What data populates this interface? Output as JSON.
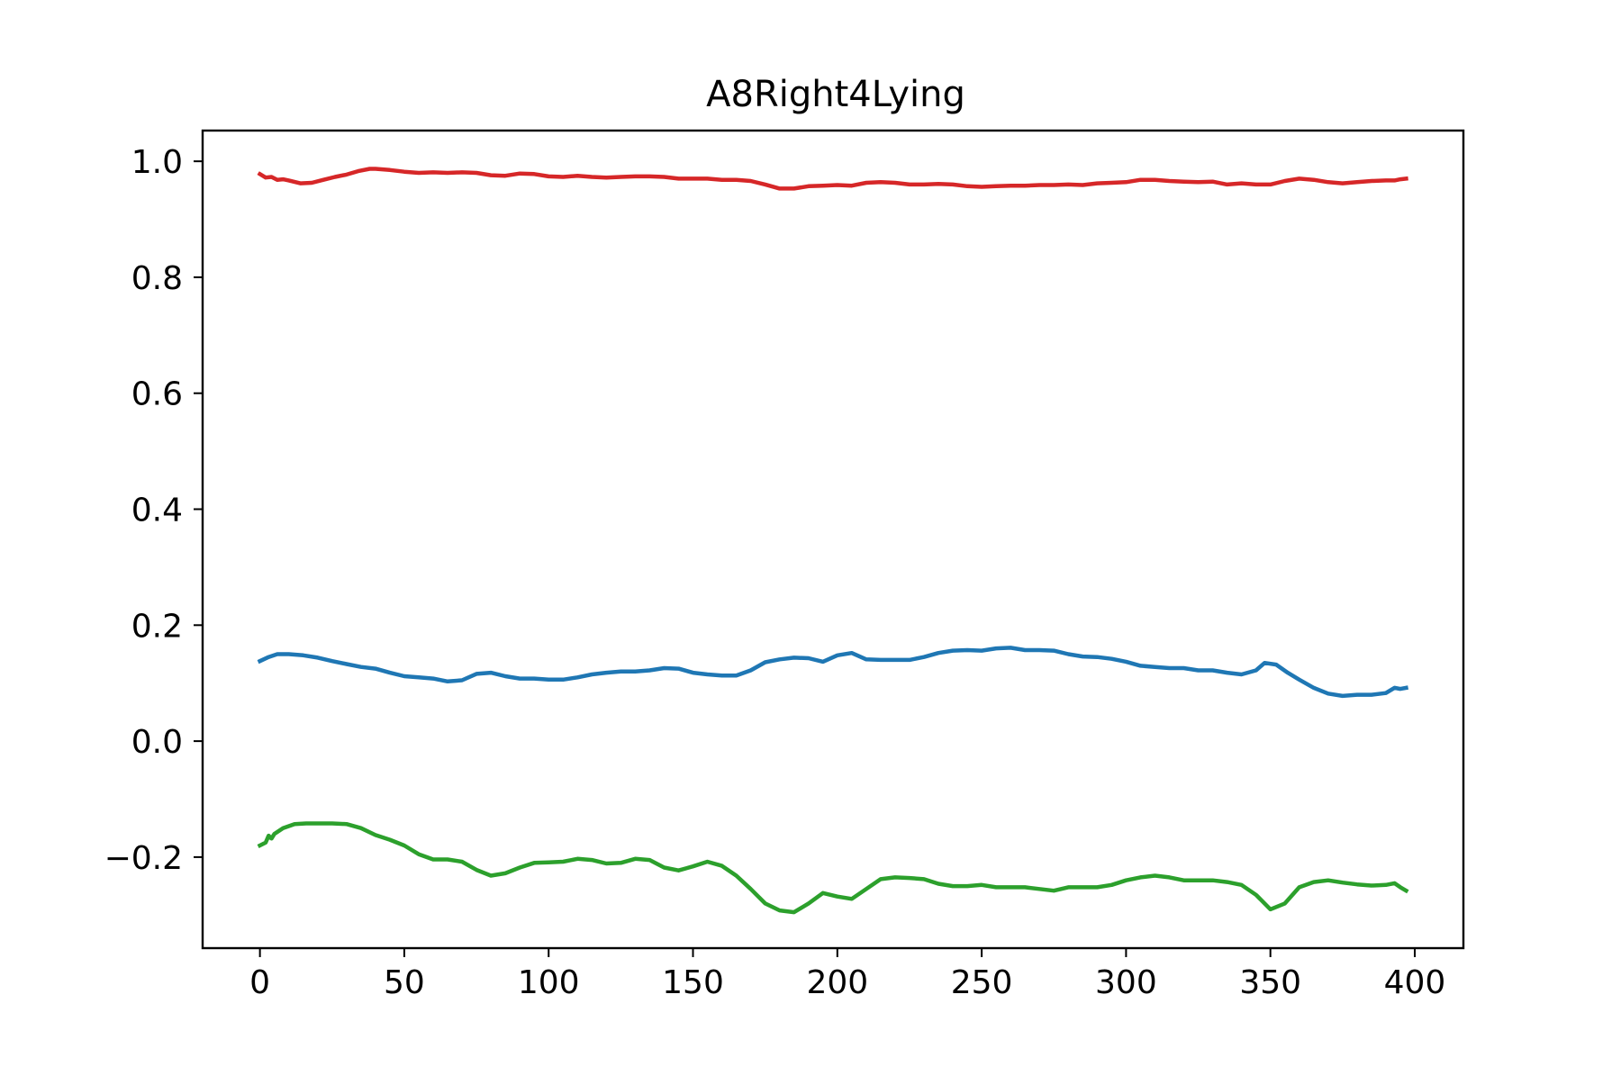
{
  "chart_data": {
    "type": "line",
    "title": "A8Right4Lying",
    "xlabel": "",
    "ylabel": "",
    "xlim": [
      -19.85,
      416.85
    ],
    "ylim": [
      -0.357,
      1.053
    ],
    "grid": false,
    "legend": "none",
    "x_ticks": [
      0,
      50,
      100,
      150,
      200,
      250,
      300,
      350,
      400
    ],
    "x_tick_labels": [
      "0",
      "50",
      "100",
      "150",
      "200",
      "250",
      "300",
      "350",
      "400"
    ],
    "y_ticks": [
      1.0,
      0.8,
      0.6,
      0.4,
      0.2,
      0.0,
      -0.2
    ],
    "y_tick_labels": [
      "1.0",
      "0.8",
      "0.6",
      "0.4",
      "0.2",
      "0.0",
      "−0.2"
    ],
    "series": [
      {
        "color": "#d62728",
        "points": [
          [
            0,
            0.978
          ],
          [
            2,
            0.972
          ],
          [
            4,
            0.973
          ],
          [
            6,
            0.968
          ],
          [
            8,
            0.969
          ],
          [
            10,
            0.967
          ],
          [
            14,
            0.962
          ],
          [
            18,
            0.963
          ],
          [
            22,
            0.968
          ],
          [
            26,
            0.973
          ],
          [
            30,
            0.977
          ],
          [
            34,
            0.983
          ],
          [
            38,
            0.987
          ],
          [
            40,
            0.987
          ],
          [
            45,
            0.985
          ],
          [
            50,
            0.982
          ],
          [
            55,
            0.98
          ],
          [
            60,
            0.981
          ],
          [
            65,
            0.98
          ],
          [
            70,
            0.981
          ],
          [
            75,
            0.98
          ],
          [
            80,
            0.976
          ],
          [
            85,
            0.975
          ],
          [
            90,
            0.979
          ],
          [
            95,
            0.978
          ],
          [
            100,
            0.974
          ],
          [
            105,
            0.973
          ],
          [
            110,
            0.975
          ],
          [
            115,
            0.973
          ],
          [
            120,
            0.972
          ],
          [
            125,
            0.973
          ],
          [
            130,
            0.974
          ],
          [
            135,
            0.974
          ],
          [
            140,
            0.973
          ],
          [
            145,
            0.97
          ],
          [
            150,
            0.97
          ],
          [
            155,
            0.97
          ],
          [
            160,
            0.968
          ],
          [
            165,
            0.968
          ],
          [
            170,
            0.966
          ],
          [
            175,
            0.96
          ],
          [
            180,
            0.953
          ],
          [
            185,
            0.953
          ],
          [
            190,
            0.957
          ],
          [
            195,
            0.958
          ],
          [
            200,
            0.959
          ],
          [
            205,
            0.958
          ],
          [
            210,
            0.963
          ],
          [
            215,
            0.964
          ],
          [
            220,
            0.963
          ],
          [
            225,
            0.96
          ],
          [
            230,
            0.96
          ],
          [
            235,
            0.961
          ],
          [
            240,
            0.96
          ],
          [
            245,
            0.957
          ],
          [
            250,
            0.956
          ],
          [
            255,
            0.957
          ],
          [
            260,
            0.958
          ],
          [
            265,
            0.958
          ],
          [
            270,
            0.959
          ],
          [
            275,
            0.959
          ],
          [
            280,
            0.96
          ],
          [
            285,
            0.959
          ],
          [
            290,
            0.962
          ],
          [
            295,
            0.963
          ],
          [
            300,
            0.964
          ],
          [
            305,
            0.968
          ],
          [
            310,
            0.968
          ],
          [
            315,
            0.966
          ],
          [
            320,
            0.965
          ],
          [
            325,
            0.964
          ],
          [
            330,
            0.965
          ],
          [
            335,
            0.96
          ],
          [
            340,
            0.962
          ],
          [
            345,
            0.96
          ],
          [
            350,
            0.96
          ],
          [
            355,
            0.966
          ],
          [
            360,
            0.97
          ],
          [
            365,
            0.968
          ],
          [
            370,
            0.964
          ],
          [
            375,
            0.962
          ],
          [
            380,
            0.964
          ],
          [
            385,
            0.966
          ],
          [
            390,
            0.967
          ],
          [
            393,
            0.967
          ],
          [
            395,
            0.969
          ],
          [
            397,
            0.97
          ]
        ]
      },
      {
        "color": "#1f77b4",
        "points": [
          [
            0,
            0.138
          ],
          [
            3,
            0.145
          ],
          [
            6,
            0.15
          ],
          [
            10,
            0.15
          ],
          [
            15,
            0.148
          ],
          [
            20,
            0.144
          ],
          [
            25,
            0.138
          ],
          [
            30,
            0.133
          ],
          [
            35,
            0.128
          ],
          [
            40,
            0.125
          ],
          [
            45,
            0.118
          ],
          [
            50,
            0.112
          ],
          [
            55,
            0.11
          ],
          [
            60,
            0.108
          ],
          [
            65,
            0.103
          ],
          [
            70,
            0.105
          ],
          [
            75,
            0.116
          ],
          [
            80,
            0.118
          ],
          [
            85,
            0.112
          ],
          [
            90,
            0.108
          ],
          [
            95,
            0.108
          ],
          [
            100,
            0.106
          ],
          [
            105,
            0.106
          ],
          [
            110,
            0.11
          ],
          [
            115,
            0.115
          ],
          [
            120,
            0.118
          ],
          [
            125,
            0.12
          ],
          [
            130,
            0.12
          ],
          [
            135,
            0.122
          ],
          [
            140,
            0.126
          ],
          [
            145,
            0.125
          ],
          [
            150,
            0.118
          ],
          [
            155,
            0.115
          ],
          [
            160,
            0.113
          ],
          [
            165,
            0.113
          ],
          [
            170,
            0.122
          ],
          [
            175,
            0.136
          ],
          [
            180,
            0.141
          ],
          [
            185,
            0.144
          ],
          [
            190,
            0.143
          ],
          [
            195,
            0.137
          ],
          [
            200,
            0.148
          ],
          [
            205,
            0.152
          ],
          [
            210,
            0.141
          ],
          [
            215,
            0.14
          ],
          [
            220,
            0.14
          ],
          [
            225,
            0.14
          ],
          [
            230,
            0.145
          ],
          [
            235,
            0.152
          ],
          [
            240,
            0.156
          ],
          [
            245,
            0.157
          ],
          [
            250,
            0.156
          ],
          [
            255,
            0.16
          ],
          [
            260,
            0.161
          ],
          [
            265,
            0.157
          ],
          [
            270,
            0.157
          ],
          [
            275,
            0.156
          ],
          [
            280,
            0.15
          ],
          [
            285,
            0.146
          ],
          [
            290,
            0.145
          ],
          [
            295,
            0.142
          ],
          [
            300,
            0.137
          ],
          [
            305,
            0.13
          ],
          [
            310,
            0.128
          ],
          [
            315,
            0.126
          ],
          [
            320,
            0.126
          ],
          [
            325,
            0.122
          ],
          [
            330,
            0.122
          ],
          [
            335,
            0.118
          ],
          [
            340,
            0.115
          ],
          [
            345,
            0.122
          ],
          [
            348,
            0.135
          ],
          [
            352,
            0.132
          ],
          [
            356,
            0.118
          ],
          [
            360,
            0.106
          ],
          [
            365,
            0.092
          ],
          [
            370,
            0.082
          ],
          [
            375,
            0.078
          ],
          [
            380,
            0.08
          ],
          [
            385,
            0.08
          ],
          [
            390,
            0.083
          ],
          [
            393,
            0.092
          ],
          [
            395,
            0.09
          ],
          [
            397,
            0.092
          ]
        ]
      },
      {
        "color": "#2ca02c",
        "points": [
          [
            0,
            -0.18
          ],
          [
            2,
            -0.175
          ],
          [
            3,
            -0.163
          ],
          [
            4,
            -0.168
          ],
          [
            5,
            -0.16
          ],
          [
            8,
            -0.15
          ],
          [
            12,
            -0.143
          ],
          [
            16,
            -0.142
          ],
          [
            20,
            -0.142
          ],
          [
            25,
            -0.142
          ],
          [
            30,
            -0.143
          ],
          [
            35,
            -0.15
          ],
          [
            40,
            -0.162
          ],
          [
            45,
            -0.17
          ],
          [
            50,
            -0.18
          ],
          [
            55,
            -0.195
          ],
          [
            60,
            -0.204
          ],
          [
            65,
            -0.204
          ],
          [
            70,
            -0.208
          ],
          [
            75,
            -0.222
          ],
          [
            80,
            -0.232
          ],
          [
            85,
            -0.228
          ],
          [
            90,
            -0.218
          ],
          [
            95,
            -0.21
          ],
          [
            100,
            -0.209
          ],
          [
            105,
            -0.208
          ],
          [
            110,
            -0.203
          ],
          [
            115,
            -0.205
          ],
          [
            120,
            -0.211
          ],
          [
            125,
            -0.21
          ],
          [
            130,
            -0.203
          ],
          [
            135,
            -0.205
          ],
          [
            140,
            -0.218
          ],
          [
            145,
            -0.223
          ],
          [
            150,
            -0.216
          ],
          [
            155,
            -0.208
          ],
          [
            160,
            -0.215
          ],
          [
            165,
            -0.232
          ],
          [
            170,
            -0.255
          ],
          [
            175,
            -0.28
          ],
          [
            180,
            -0.292
          ],
          [
            185,
            -0.295
          ],
          [
            190,
            -0.28
          ],
          [
            195,
            -0.262
          ],
          [
            200,
            -0.268
          ],
          [
            205,
            -0.272
          ],
          [
            210,
            -0.255
          ],
          [
            215,
            -0.238
          ],
          [
            220,
            -0.235
          ],
          [
            225,
            -0.236
          ],
          [
            230,
            -0.238
          ],
          [
            235,
            -0.246
          ],
          [
            240,
            -0.25
          ],
          [
            245,
            -0.25
          ],
          [
            250,
            -0.248
          ],
          [
            255,
            -0.252
          ],
          [
            260,
            -0.252
          ],
          [
            265,
            -0.252
          ],
          [
            270,
            -0.255
          ],
          [
            275,
            -0.258
          ],
          [
            280,
            -0.252
          ],
          [
            285,
            -0.252
          ],
          [
            290,
            -0.252
          ],
          [
            295,
            -0.248
          ],
          [
            300,
            -0.24
          ],
          [
            305,
            -0.235
          ],
          [
            310,
            -0.232
          ],
          [
            315,
            -0.235
          ],
          [
            320,
            -0.24
          ],
          [
            325,
            -0.24
          ],
          [
            330,
            -0.24
          ],
          [
            335,
            -0.243
          ],
          [
            340,
            -0.248
          ],
          [
            345,
            -0.265
          ],
          [
            350,
            -0.29
          ],
          [
            355,
            -0.28
          ],
          [
            360,
            -0.252
          ],
          [
            365,
            -0.243
          ],
          [
            370,
            -0.24
          ],
          [
            375,
            -0.244
          ],
          [
            380,
            -0.247
          ],
          [
            385,
            -0.249
          ],
          [
            390,
            -0.248
          ],
          [
            393,
            -0.245
          ],
          [
            395,
            -0.252
          ],
          [
            397,
            -0.258
          ]
        ]
      }
    ]
  }
}
